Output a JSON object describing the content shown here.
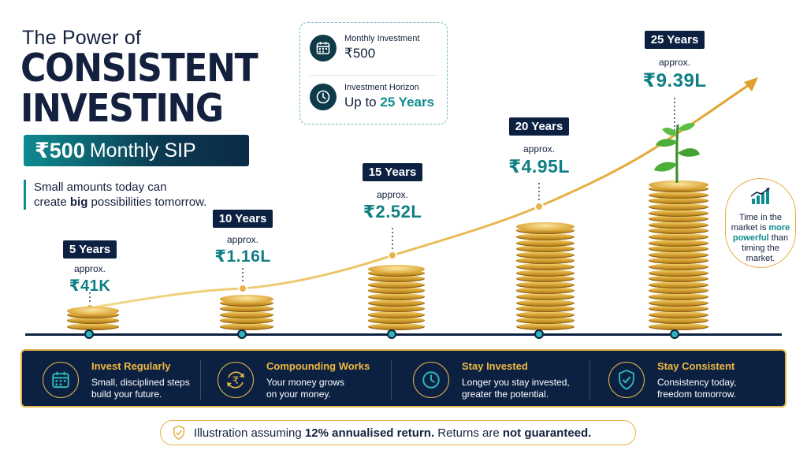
{
  "title": {
    "small": "The Power of",
    "line1": "CONSISTENT",
    "line2": "INVESTING",
    "sip_amount": "₹500",
    "sip_label": "Monthly SIP"
  },
  "tagline": {
    "pre": "Small amounts today can",
    "line2_pre": "create ",
    "bold": "big",
    "line2_post": " possibilities tomorrow."
  },
  "info": {
    "monthly_label": "Monthly Investment",
    "monthly_value": "₹500",
    "horizon_label": "Investment Horizon",
    "horizon_pre": "Up to ",
    "horizon_value": "25 Years"
  },
  "milestones": [
    {
      "years": "5 Years",
      "approx": "approx.",
      "value": "₹41K"
    },
    {
      "years": "10 Years",
      "approx": "approx.",
      "value": "₹1.16L"
    },
    {
      "years": "15 Years",
      "approx": "approx.",
      "value": "₹2.52L"
    },
    {
      "years": "20 Years",
      "approx": "approx.",
      "value": "₹4.95L"
    },
    {
      "years": "25 Years",
      "approx": "approx.",
      "value": "₹9.39L"
    }
  ],
  "quote": {
    "l1": "Time in the",
    "l2a": "market is ",
    "l2b": "more",
    "l3a": "powerful",
    "l3b": " than",
    "l4": "timing the",
    "l5": "market."
  },
  "features": [
    {
      "icon": "calendar-icon",
      "title": "Invest Regularly",
      "d1": "Small, disciplined steps",
      "d2": "build your future."
    },
    {
      "icon": "rupee-cycle-icon",
      "title": "Compounding Works",
      "d1": "Your money grows",
      "d2": "on your money."
    },
    {
      "icon": "clock-icon",
      "title": "Stay Invested",
      "d1": "Longer you stay invested,",
      "d2": "greater the potential."
    },
    {
      "icon": "shield-check-icon",
      "title": "Stay Consistent",
      "d1": "Consistency today,",
      "d2": "freedom tomorrow."
    }
  ],
  "disclaimer": {
    "pre": "Illustration assuming ",
    "bold1": "12% annualised return.",
    "mid": " Returns are ",
    "bold2": "not guaranteed."
  },
  "colors": {
    "navy": "#0c2142",
    "teal": "#0e8c8f",
    "gold": "#e4b34a"
  }
}
